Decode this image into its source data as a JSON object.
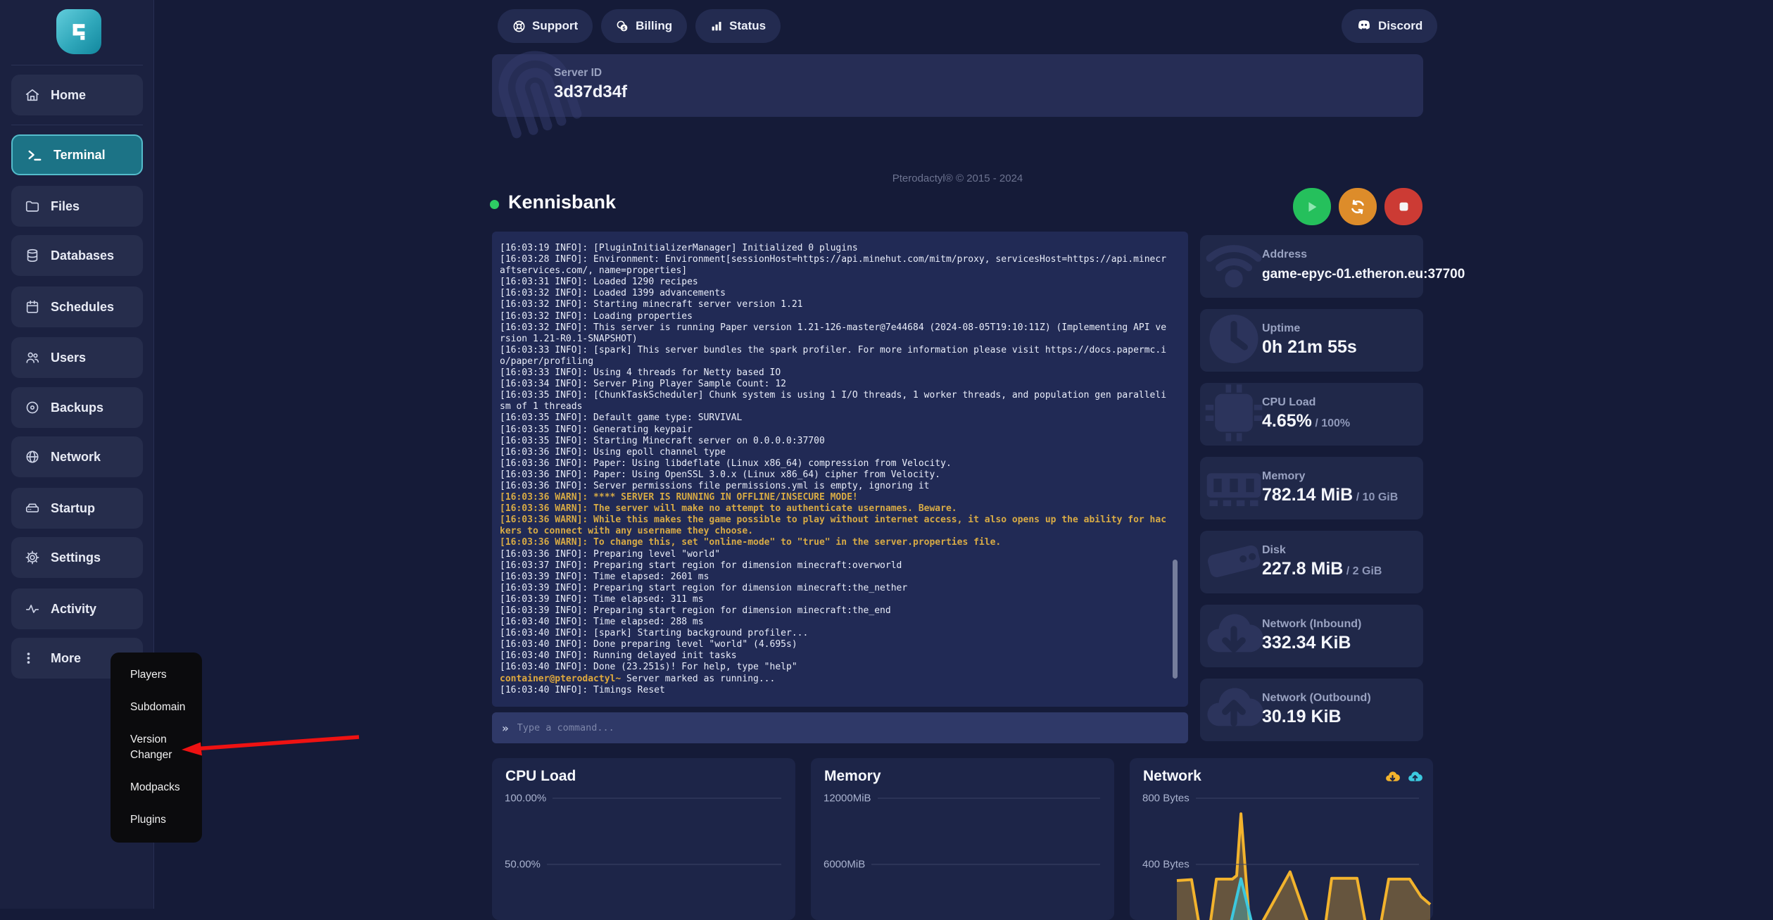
{
  "topbar": {
    "buttons": [
      {
        "label": "Support",
        "icon": "support-icon"
      },
      {
        "label": "Billing",
        "icon": "billing-icon"
      },
      {
        "label": "Status",
        "icon": "status-icon"
      }
    ],
    "discord": {
      "label": "Discord",
      "icon": "discord-icon"
    }
  },
  "server_id_card": {
    "label": "Server ID",
    "value": "3d37d34f",
    "icon": "fingerprint-icon"
  },
  "footer": {
    "copyright": "Pterodactyl® © 2015 - 2024"
  },
  "sidebar": {
    "items": [
      {
        "label": "Home",
        "icon": "home-icon",
        "active": false,
        "divider_after": true
      },
      {
        "label": "Terminal",
        "icon": "terminal-icon",
        "active": true
      },
      {
        "label": "Files",
        "icon": "folder-icon",
        "active": false
      },
      {
        "label": "Databases",
        "icon": "database-icon",
        "active": false
      },
      {
        "label": "Schedules",
        "icon": "calendar-icon",
        "active": false
      },
      {
        "label": "Users",
        "icon": "users-icon",
        "active": false
      },
      {
        "label": "Backups",
        "icon": "backups-icon",
        "active": false
      },
      {
        "label": "Network",
        "icon": "globe-icon",
        "active": false
      },
      {
        "label": "Startup",
        "icon": "startup-icon",
        "active": false
      },
      {
        "label": "Settings",
        "icon": "gear-icon",
        "active": false
      },
      {
        "label": "Activity",
        "icon": "activity-icon",
        "active": false
      },
      {
        "label": "More",
        "icon": "more-dots-icon",
        "active": false
      }
    ],
    "more_menu": {
      "items": [
        "Players",
        "Subdomain",
        "Version Changer",
        "Modpacks",
        "Plugins"
      ]
    }
  },
  "annotation": {
    "arrow_color": "#ee1212",
    "points_to": "Version Changer"
  },
  "server": {
    "name": "Kennisbank",
    "status_color": "#2ecc64",
    "actions": [
      {
        "name": "start",
        "icon": "play-icon",
        "bg": "#25c05c"
      },
      {
        "name": "restart",
        "icon": "restart-icon",
        "bg": "#dd8c2a"
      },
      {
        "name": "stop",
        "icon": "stop-icon",
        "bg": "#cc3b34"
      }
    ]
  },
  "console": {
    "prompt_icon": "»",
    "command_placeholder": "Type a command...",
    "lines": [
      {
        "t": "info",
        "text": "[16:03:19 INFO]: [PluginInitializerManager] Initialized 0 plugins"
      },
      {
        "t": "info",
        "text": "[16:03:28 INFO]: Environment: Environment[sessionHost=https://api.minehut.com/mitm/proxy, servicesHost=https://api.minecraftservices.com/, name=properties]"
      },
      {
        "t": "info",
        "text": "[16:03:31 INFO]: Loaded 1290 recipes"
      },
      {
        "t": "info",
        "text": "[16:03:32 INFO]: Loaded 1399 advancements"
      },
      {
        "t": "info",
        "text": "[16:03:32 INFO]: Starting minecraft server version 1.21"
      },
      {
        "t": "info",
        "text": "[16:03:32 INFO]: Loading properties"
      },
      {
        "t": "info",
        "text": "[16:03:32 INFO]: This server is running Paper version 1.21-126-master@7e44684 (2024-08-05T19:10:11Z) (Implementing API version 1.21-R0.1-SNAPSHOT)"
      },
      {
        "t": "info",
        "text": "[16:03:33 INFO]: [spark] This server bundles the spark profiler. For more information please visit https://docs.papermc.io/paper/profiling"
      },
      {
        "t": "info",
        "text": "[16:03:33 INFO]: Using 4 threads for Netty based IO"
      },
      {
        "t": "info",
        "text": "[16:03:34 INFO]: Server Ping Player Sample Count: 12"
      },
      {
        "t": "info",
        "text": "[16:03:35 INFO]: [ChunkTaskScheduler] Chunk system is using 1 I/O threads, 1 worker threads, and population gen parallelism of 1 threads"
      },
      {
        "t": "info",
        "text": "[16:03:35 INFO]: Default game type: SURVIVAL"
      },
      {
        "t": "info",
        "text": "[16:03:35 INFO]: Generating keypair"
      },
      {
        "t": "info",
        "text": "[16:03:35 INFO]: Starting Minecraft server on 0.0.0.0:37700"
      },
      {
        "t": "info",
        "text": "[16:03:36 INFO]: Using epoll channel type"
      },
      {
        "t": "info",
        "text": "[16:03:36 INFO]: Paper: Using libdeflate (Linux x86_64) compression from Velocity."
      },
      {
        "t": "info",
        "text": "[16:03:36 INFO]: Paper: Using OpenSSL 3.0.x (Linux x86_64) cipher from Velocity."
      },
      {
        "t": "info",
        "text": "[16:03:36 INFO]: Server permissions file permissions.yml is empty, ignoring it"
      },
      {
        "t": "warn",
        "text": "[16:03:36 WARN]: **** SERVER IS RUNNING IN OFFLINE/INSECURE MODE!"
      },
      {
        "t": "warn",
        "text": "[16:03:36 WARN]: The server will make no attempt to authenticate usernames. Beware."
      },
      {
        "t": "warn",
        "text": "[16:03:36 WARN]: While this makes the game possible to play without internet access, it also opens up the ability for hackers to connect with any username they choose."
      },
      {
        "t": "warn",
        "text": "[16:03:36 WARN]: To change this, set \"online-mode\" to \"true\" in the server.properties file."
      },
      {
        "t": "info",
        "text": "[16:03:36 INFO]: Preparing level \"world\""
      },
      {
        "t": "info",
        "text": "[16:03:37 INFO]: Preparing start region for dimension minecraft:overworld"
      },
      {
        "t": "info",
        "text": "[16:03:39 INFO]: Time elapsed: 2601 ms"
      },
      {
        "t": "info",
        "text": "[16:03:39 INFO]: Preparing start region for dimension minecraft:the_nether"
      },
      {
        "t": "info",
        "text": "[16:03:39 INFO]: Time elapsed: 311 ms"
      },
      {
        "t": "info",
        "text": "[16:03:39 INFO]: Preparing start region for dimension minecraft:the_end"
      },
      {
        "t": "info",
        "text": "[16:03:40 INFO]: Time elapsed: 288 ms"
      },
      {
        "t": "info",
        "text": "[16:03:40 INFO]: [spark] Starting background profiler..."
      },
      {
        "t": "info",
        "text": "[16:03:40 INFO]: Done preparing level \"world\" (4.695s)"
      },
      {
        "t": "info",
        "text": "[16:03:40 INFO]: Running delayed init tasks"
      },
      {
        "t": "info",
        "text": "[16:03:40 INFO]: Done (23.251s)! For help, type \"help\""
      },
      {
        "t": "prompt",
        "prefix": "container@pterodactyl~",
        "text": " Server marked as running..."
      },
      {
        "t": "info",
        "text": "[16:03:40 INFO]: Timings Reset"
      }
    ]
  },
  "stats": [
    {
      "label": "Address",
      "value": "game-epyc-01.etheron.eu:37700",
      "suffix": "",
      "icon": "wifi-icon",
      "small": true
    },
    {
      "label": "Uptime",
      "value": "0h 21m 55s",
      "suffix": "",
      "icon": "clock-icon"
    },
    {
      "label": "CPU Load",
      "value": "4.65%",
      "suffix": "/ 100%",
      "icon": "chip-icon"
    },
    {
      "label": "Memory",
      "value": "782.14 MiB",
      "suffix": "/ 10 GiB",
      "icon": "ram-icon"
    },
    {
      "label": "Disk",
      "value": "227.8 MiB",
      "suffix": "/ 2 GiB",
      "icon": "disk-icon"
    },
    {
      "label": "Network (Inbound)",
      "value": "332.34 KiB",
      "suffix": "",
      "icon": "cloud-down-icon"
    },
    {
      "label": "Network (Outbound)",
      "value": "30.19 KiB",
      "suffix": "",
      "icon": "cloud-up-icon"
    }
  ],
  "chart_data": [
    {
      "type": "line",
      "title": "CPU Load",
      "yticks": [
        "100.00%",
        "50.00%"
      ],
      "series": [
        {
          "name": "CPU",
          "values": []
        }
      ],
      "note": "no data line visible in cropped area (usage near 0%)"
    },
    {
      "type": "line",
      "title": "Memory",
      "yticks": [
        "12000MiB",
        "6000MiB"
      ],
      "series": [
        {
          "name": "Memory",
          "values": []
        }
      ],
      "note": "no data line visible in cropped area"
    },
    {
      "type": "area",
      "title": "Network",
      "yticks": [
        "800 Bytes",
        "400 Bytes"
      ],
      "legend": [
        {
          "name": "Inbound",
          "color": "#f2b32d",
          "icon": "cloud-down-mini-icon"
        },
        {
          "name": "Outbound",
          "color": "#3cc8de",
          "icon": "cloud-up-mini-icon"
        }
      ],
      "series": [
        {
          "name": "Inbound",
          "color": "#f2b32d",
          "unit": "Bytes",
          "points": [
            [
              0,
              302
            ],
            [
              0.058,
              308
            ],
            [
              0.092,
              0
            ],
            [
              0.128,
              0
            ],
            [
              0.156,
              311
            ],
            [
              0.219,
              311
            ],
            [
              0.236,
              332
            ],
            [
              0.253,
              706
            ],
            [
              0.289,
              0
            ],
            [
              0.319,
              0
            ],
            [
              0.447,
              355
            ],
            [
              0.528,
              0
            ],
            [
              0.583,
              0
            ],
            [
              0.611,
              316
            ],
            [
              0.711,
              316
            ],
            [
              0.75,
              0
            ],
            [
              0.8,
              0
            ],
            [
              0.836,
              311
            ],
            [
              0.919,
              311
            ],
            [
              0.964,
              205
            ],
            [
              1,
              158
            ]
          ]
        },
        {
          "name": "Outbound",
          "color": "#3cc8de",
          "unit": "Bytes",
          "points": [
            [
              0,
              0
            ],
            [
              0.206,
              0
            ],
            [
              0.253,
              313
            ],
            [
              0.303,
              0
            ],
            [
              1,
              0
            ]
          ]
        }
      ]
    }
  ]
}
